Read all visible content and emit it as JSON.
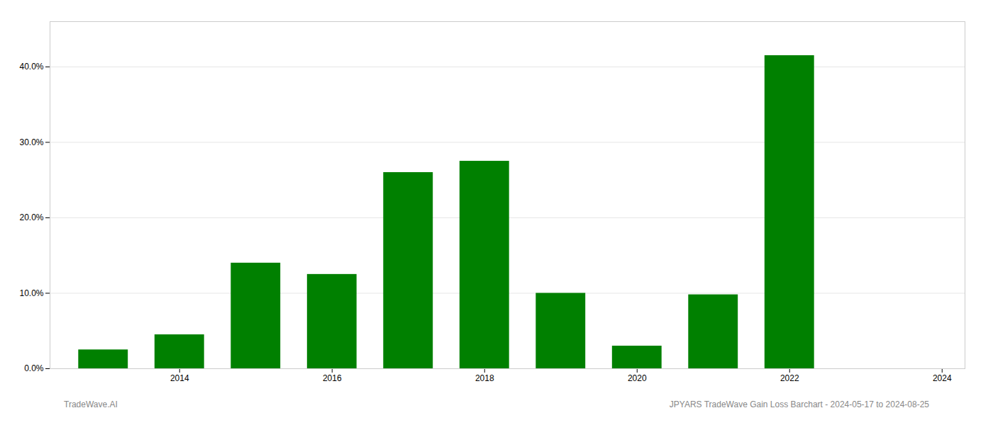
{
  "chart_data": {
    "type": "bar",
    "x": [
      2013,
      2014,
      2015,
      2016,
      2017,
      2018,
      2019,
      2020,
      2021,
      2022,
      2023
    ],
    "values": [
      0.025,
      0.045,
      0.14,
      0.125,
      0.26,
      0.275,
      0.1,
      0.03,
      0.098,
      0.415,
      0.0
    ],
    "color": "#008000",
    "xlim": [
      2012.3,
      2024.3
    ],
    "xticks": [
      2014,
      2016,
      2018,
      2020,
      2022,
      2024
    ],
    "ylim": [
      0,
      0.46
    ],
    "yticks": [
      {
        "value": 0.0,
        "label": "0.0%"
      },
      {
        "value": 0.1,
        "label": "10.0%"
      },
      {
        "value": 0.2,
        "label": "20.0%"
      },
      {
        "value": 0.3,
        "label": "30.0%"
      },
      {
        "value": 0.4,
        "label": "40.0%"
      }
    ],
    "grid": true,
    "annotations": [
      "TradeWave.AI",
      "JPYARS TradeWave Gain Loss Barchart - 2024-05-17 to 2024-08-25"
    ]
  }
}
